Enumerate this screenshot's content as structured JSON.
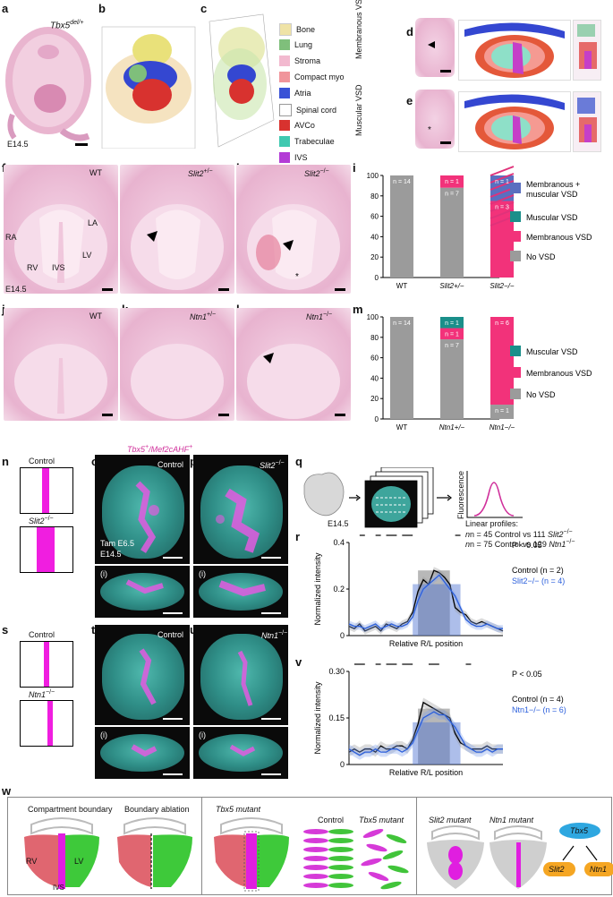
{
  "panel_letters": [
    "a",
    "b",
    "c",
    "d",
    "e",
    "f",
    "g",
    "h",
    "i",
    "j",
    "k",
    "l",
    "m",
    "n",
    "o",
    "p",
    "q",
    "r",
    "s",
    "t",
    "u",
    "v",
    "w"
  ],
  "row1": {
    "a_genotype": "Tbx5",
    "a_sup": "del/+",
    "a_stage": "E14.5",
    "legend": [
      {
        "label": "Bone",
        "color": "#efe3a6"
      },
      {
        "label": "Lung",
        "color": "#7fbf7b"
      },
      {
        "label": "Stroma",
        "color": "#f2b9cf"
      },
      {
        "label": "Compact myo",
        "color": "#f0959b"
      },
      {
        "label": "Atria",
        "color": "#3a52d6"
      },
      {
        "label": "Spinal cord",
        "color": "#ffffff"
      },
      {
        "label": "AVCo",
        "color": "#d8322f"
      },
      {
        "label": "Trabeculae",
        "color": "#3fc9b0"
      },
      {
        "label": "IVS",
        "color": "#b33bd6"
      }
    ],
    "d_label": "Membranous VSD",
    "e_label": "Muscular VSD"
  },
  "row2": {
    "f_WT": "WT",
    "f_RA": "RA",
    "f_LA": "LA",
    "f_RV": "RV",
    "f_IVS": "IVS",
    "f_LV": "LV",
    "f_stage": "E14.5",
    "g_geno": "Slit2",
    "g_sup": "+/−",
    "h_geno": "Slit2",
    "h_sup": "−/−"
  },
  "row3": {
    "j_WT": "WT",
    "k_geno": "Ntn1",
    "k_sup": "+/−",
    "l_geno": "Ntn1",
    "l_sup": "−/−"
  },
  "chart_data": [
    {
      "type": "bar",
      "panel": "i",
      "categories": [
        "WT",
        "Slit2+/−",
        "Slit2−/−"
      ],
      "ylim": [
        0,
        100
      ],
      "yticks": [
        "0",
        "20",
        "40",
        "60",
        "80",
        "100"
      ],
      "series": [
        {
          "name": "No VSD",
          "color": "#9b9b9b",
          "values": [
            100,
            88,
            0
          ]
        },
        {
          "name": "Membranous VSD",
          "color": "#f2327a",
          "values": [
            0,
            12,
            75
          ]
        },
        {
          "name": "Muscular VSD",
          "color": "#1a8f8a",
          "values": [
            0,
            0,
            0
          ]
        },
        {
          "name": "Membranous + muscular VSD",
          "color": "#5a6fc0",
          "values": [
            0,
            0,
            25
          ]
        }
      ],
      "bar_labels": [
        [
          "n = 14"
        ],
        [
          "n = 7",
          "n = 1"
        ],
        [
          "n = 3",
          "n = 1"
        ]
      ],
      "legend_labels": [
        "Membranous +",
        "muscular VSD",
        "Muscular VSD",
        "Membranous VSD",
        "No VSD"
      ]
    },
    {
      "type": "bar",
      "panel": "m",
      "categories": [
        "WT",
        "Ntn1+/−",
        "Ntn1−/−"
      ],
      "ylim": [
        0,
        100
      ],
      "yticks": [
        "0",
        "20",
        "40",
        "60",
        "80",
        "100"
      ],
      "series": [
        {
          "name": "No VSD",
          "color": "#9b9b9b",
          "values": [
            100,
            78,
            14
          ]
        },
        {
          "name": "Membranous VSD",
          "color": "#f2327a",
          "values": [
            0,
            11,
            86
          ]
        },
        {
          "name": "Muscular VSD",
          "color": "#1a8f8a",
          "values": [
            0,
            11,
            0
          ]
        }
      ],
      "bar_labels": [
        [
          "n = 14"
        ],
        [
          "n = 7",
          "n = 1",
          "n = 1"
        ],
        [
          "n = 1",
          "n = 6"
        ]
      ],
      "legend_labels": [
        "Muscular VSD",
        "Membranous VSD",
        "No VSD"
      ]
    },
    {
      "type": "line",
      "panel": "r",
      "ylabel": "Normalized intensity",
      "xlabel": "Relative R/L position",
      "ylim": [
        0,
        0.4
      ],
      "yticks": [
        "0",
        "0.2",
        "0.4"
      ],
      "series": [
        {
          "name": "Control (n = 2)",
          "color": "#000000",
          "y": [
            0.04,
            0.03,
            0.05,
            0.02,
            0.03,
            0.04,
            0.02,
            0.05,
            0.04,
            0.03,
            0.05,
            0.06,
            0.1,
            0.19,
            0.24,
            0.22,
            0.28,
            0.27,
            0.25,
            0.22,
            0.12,
            0.1,
            0.09,
            0.06,
            0.05,
            0.06,
            0.05,
            0.04,
            0.03,
            0.02
          ]
        },
        {
          "name": "Slit2−/− (n = 4)",
          "color": "#2b5fdc",
          "y": [
            0.05,
            0.04,
            0.04,
            0.03,
            0.04,
            0.05,
            0.03,
            0.04,
            0.05,
            0.04,
            0.04,
            0.05,
            0.08,
            0.15,
            0.2,
            0.22,
            0.24,
            0.26,
            0.23,
            0.2,
            0.17,
            0.12,
            0.07,
            0.05,
            0.04,
            0.04,
            0.05,
            0.04,
            0.03,
            0.03
          ]
        }
      ],
      "pvalue_label": "P < 0.05"
    },
    {
      "type": "line",
      "panel": "v",
      "ylabel": "Normalized intensity",
      "xlabel": "Relative R/L position",
      "ylim": [
        0,
        0.3
      ],
      "yticks": [
        "0",
        "0.15",
        "0.30"
      ],
      "series": [
        {
          "name": "Control (n = 4)",
          "color": "#000000",
          "y": [
            0.04,
            0.05,
            0.04,
            0.05,
            0.05,
            0.04,
            0.06,
            0.05,
            0.05,
            0.06,
            0.06,
            0.05,
            0.08,
            0.13,
            0.2,
            0.19,
            0.18,
            0.17,
            0.16,
            0.15,
            0.1,
            0.07,
            0.06,
            0.05,
            0.05,
            0.05,
            0.06,
            0.05,
            0.05,
            0.05
          ]
        },
        {
          "name": "Ntn1−/− (n = 6)",
          "color": "#2b5fdc",
          "y": [
            0.05,
            0.04,
            0.03,
            0.04,
            0.04,
            0.05,
            0.04,
            0.04,
            0.05,
            0.05,
            0.04,
            0.05,
            0.07,
            0.11,
            0.15,
            0.16,
            0.17,
            0.16,
            0.16,
            0.14,
            0.12,
            0.09,
            0.06,
            0.05,
            0.04,
            0.04,
            0.05,
            0.04,
            0.05,
            0.05
          ]
        }
      ],
      "pvalue_label": "P < 0.05"
    }
  ],
  "fluor": {
    "header_a": "Tbx5",
    "header_a_sup": "+",
    "header_b": "/Mef2cAHF",
    "header_b_sup": "+",
    "n_control": "Control",
    "n_mutant": "Slit2",
    "n_mutant_sup": "−/−",
    "o_label": "Control",
    "p_geno": "Slit2",
    "p_sup": "−/−",
    "tam": "Tam E6.5",
    "stage": "E14.5",
    "sub_i": "(i)",
    "s_control": "Control",
    "s_mutant": "Ntn1",
    "s_mutant_sup": "−/−",
    "t_label": "Control",
    "u_geno": "Ntn1",
    "u_sup": "−/−"
  },
  "q": {
    "stage": "E14.5",
    "ylabel": "Fluorescence",
    "line1": "Linear profiles:",
    "line2a": "n = 45 Control vs 111 ",
    "line2b": "Slit2",
    "line2c": "−/−",
    "line3a": "n = 75 Control vs 129 ",
    "line3b": "Ntn1",
    "line3c": "−/−"
  },
  "w": {
    "compartment_boundary": "Compartment boundary",
    "boundary_ablation": "Boundary ablation",
    "RV": "RV",
    "LV": "LV",
    "IVS": "IVS",
    "tbx5_mutant": "Tbx5 mutant",
    "control": "Control",
    "tbx5_mutant2": "Tbx5 mutant",
    "slit2_mutant": "Slit2 mutant",
    "ntn1_mutant": "Ntn1 mutant",
    "tbx5": "Tbx5",
    "slit2": "Slit2",
    "ntn1": "Ntn1"
  }
}
